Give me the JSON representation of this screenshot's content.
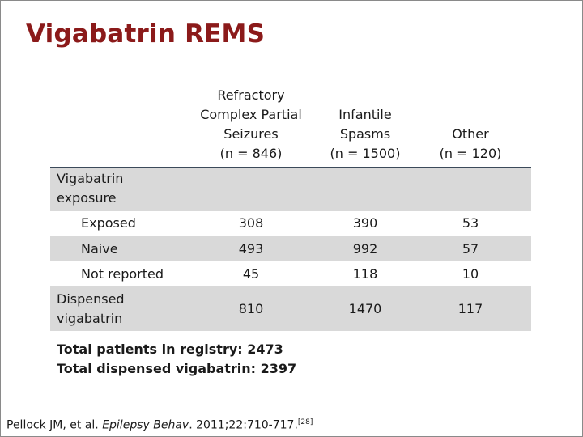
{
  "title": "Vigabatrin REMS",
  "columns": [
    {
      "lines": [
        "Refractory",
        "Complex Partial",
        "Seizures",
        "(n = 846)"
      ]
    },
    {
      "lines": [
        "Infantile",
        "Spasms",
        "(n = 1500)"
      ]
    },
    {
      "lines": [
        "Other",
        "(n = 120)"
      ]
    }
  ],
  "sections": {
    "exposure": {
      "label_lines": [
        "Vigabatrin",
        "exposure"
      ]
    },
    "dispensed": {
      "label_lines": [
        "Dispensed",
        "vigabatrin"
      ],
      "values": [
        "810",
        "1470",
        "117"
      ]
    }
  },
  "rows": [
    {
      "label": "Exposed",
      "values": [
        "308",
        "390",
        "53"
      ]
    },
    {
      "label": "Naive",
      "values": [
        "493",
        "992",
        "57"
      ]
    },
    {
      "label": "Not reported",
      "values": [
        "45",
        "118",
        "10"
      ]
    }
  ],
  "totals": [
    "Total patients in registry: 2473",
    "Total dispensed vigabatrin: 2397"
  ],
  "citation": {
    "authors": "Pellock JM, et al. ",
    "journal": "Epilepsy Behav",
    "rest": ". 2011;22:710-717.",
    "ref": "[28]"
  }
}
